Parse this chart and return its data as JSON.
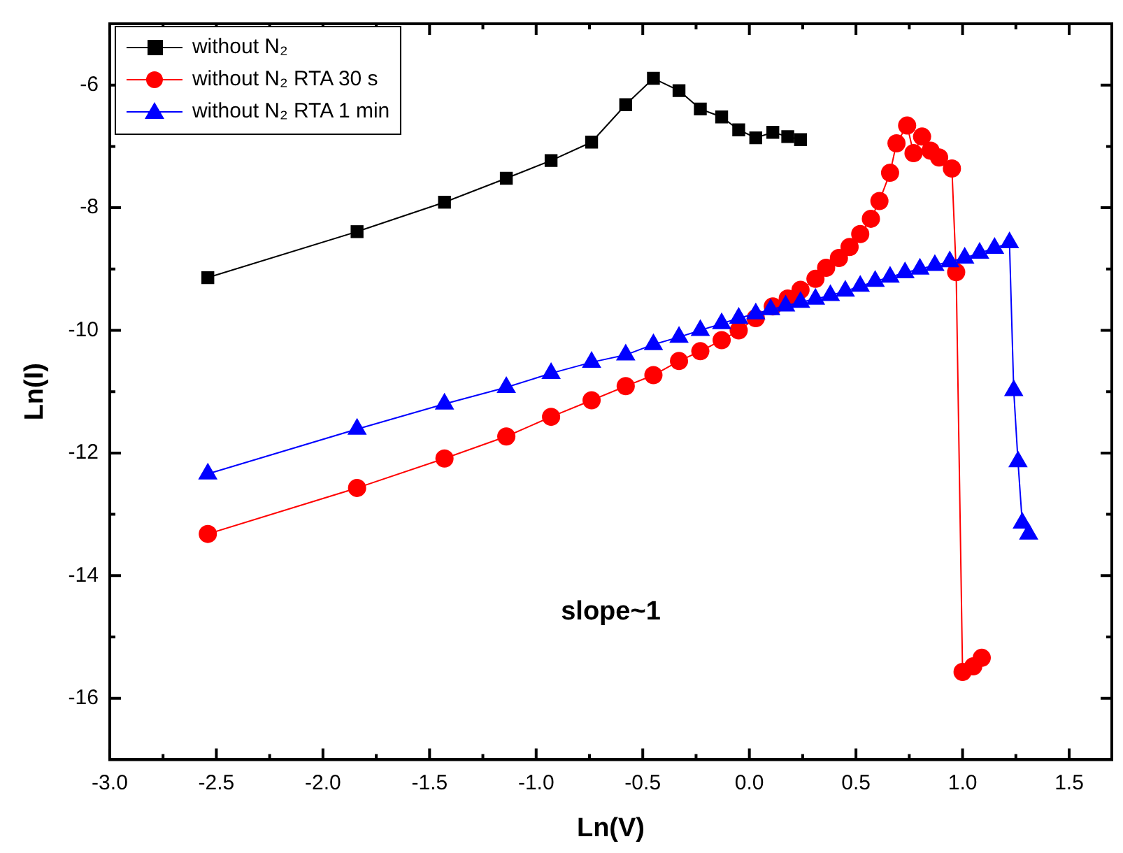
{
  "chart_data": {
    "type": "line",
    "xlabel": "Ln(V)",
    "ylabel": "Ln(I)",
    "xlim": [
      -3,
      1.7
    ],
    "xticks": [
      {
        "value": -3,
        "label": "-3.0"
      },
      {
        "value": -2.5,
        "label": "-2.5"
      },
      {
        "value": -2,
        "label": "-2.0"
      },
      {
        "value": -1.5,
        "label": "-1.5"
      },
      {
        "value": -1,
        "label": "-1.0"
      },
      {
        "value": -0.5,
        "label": "-0.5"
      },
      {
        "value": 0,
        "label": "0.0"
      },
      {
        "value": 0.5,
        "label": "0.5"
      },
      {
        "value": 1,
        "label": "1.0"
      },
      {
        "value": 1.5,
        "label": "1.5"
      }
    ],
    "ylim": [
      -17,
      -5
    ],
    "yticks": [
      -16,
      -14,
      -12,
      -10,
      -8,
      -6
    ],
    "grid": false,
    "legend": "top left",
    "line_style": "solid",
    "annotations": [
      "slope~1"
    ],
    "series": [
      {
        "name": "without N₂",
        "color": "#000000",
        "marker": "square",
        "x": [
          -2.54,
          -1.84,
          -1.43,
          -1.14,
          -0.93,
          -0.74,
          -0.58,
          -0.45,
          -0.33,
          -0.23,
          -0.13,
          -0.05,
          0.03,
          0.11,
          0.18,
          0.24
        ],
        "values": [
          -9.14,
          -8.39,
          -7.91,
          -7.52,
          -7.23,
          -6.93,
          -6.32,
          -5.89,
          -6.09,
          -6.39,
          -6.52,
          -6.73,
          -6.86,
          -6.77,
          -6.84,
          -6.89
        ]
      },
      {
        "name": "without N₂ RTA 30 s",
        "color": "#ff0000",
        "marker": "circle",
        "x": [
          -2.54,
          -1.84,
          -1.43,
          -1.14,
          -0.93,
          -0.74,
          -0.58,
          -0.45,
          -0.33,
          -0.23,
          -0.13,
          -0.05,
          0.03,
          0.11,
          0.18,
          0.24,
          0.31,
          0.36,
          0.42,
          0.47,
          0.52,
          0.57,
          0.61,
          0.66,
          0.69,
          0.74,
          0.77,
          0.81,
          0.85,
          0.89,
          0.95,
          0.97,
          1.0,
          1.05,
          1.09
        ],
        "values": [
          -13.32,
          -12.57,
          -12.09,
          -11.73,
          -11.41,
          -11.14,
          -10.91,
          -10.73,
          -10.5,
          -10.34,
          -10.16,
          -10.0,
          -9.8,
          -9.61,
          -9.48,
          -9.34,
          -9.16,
          -8.98,
          -8.82,
          -8.64,
          -8.43,
          -8.18,
          -7.89,
          -7.43,
          -6.95,
          -6.66,
          -7.11,
          -6.84,
          -7.07,
          -7.18,
          -7.36,
          -9.05,
          -15.57,
          -15.48,
          -15.34
        ]
      },
      {
        "name": "without N₂ RTA 1 min",
        "color": "#0000ff",
        "marker": "triangle",
        "x": [
          -2.54,
          -1.84,
          -1.43,
          -1.14,
          -0.93,
          -0.74,
          -0.58,
          -0.45,
          -0.33,
          -0.23,
          -0.13,
          -0.05,
          0.03,
          0.1,
          0.17,
          0.24,
          0.31,
          0.38,
          0.45,
          0.52,
          0.59,
          0.66,
          0.73,
          0.8,
          0.87,
          0.94,
          1.01,
          1.08,
          1.15,
          1.22,
          1.24,
          1.26,
          1.28,
          1.31
        ],
        "values": [
          -12.34,
          -11.61,
          -11.2,
          -10.93,
          -10.7,
          -10.52,
          -10.4,
          -10.23,
          -10.11,
          -10.0,
          -9.89,
          -9.8,
          -9.73,
          -9.66,
          -9.6,
          -9.54,
          -9.49,
          -9.43,
          -9.36,
          -9.28,
          -9.2,
          -9.13,
          -9.06,
          -9.0,
          -8.94,
          -8.88,
          -8.82,
          -8.74,
          -8.66,
          -8.57,
          -10.98,
          -12.14,
          -13.14,
          -13.32
        ]
      }
    ]
  }
}
